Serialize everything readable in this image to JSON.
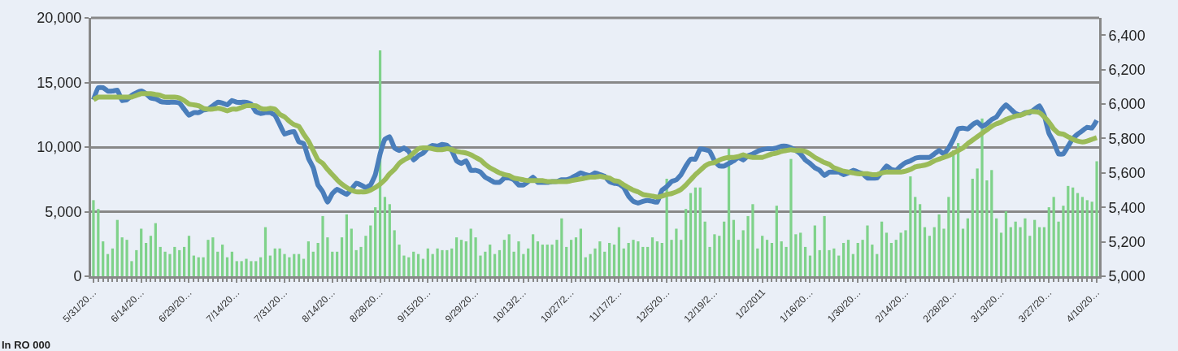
{
  "chart_data": {
    "type": "bar",
    "categories": [
      "5/31/20…",
      null,
      null,
      null,
      null,
      null,
      null,
      null,
      null,
      null,
      "6/14/20…",
      null,
      null,
      null,
      null,
      null,
      null,
      null,
      null,
      null,
      "6/29/20…",
      null,
      null,
      null,
      null,
      null,
      null,
      null,
      null,
      null,
      "7/14/20…",
      null,
      null,
      null,
      null,
      null,
      null,
      null,
      null,
      null,
      "7/31/20…",
      null,
      null,
      null,
      null,
      null,
      null,
      null,
      null,
      null,
      "8/14/20…",
      null,
      null,
      null,
      null,
      null,
      null,
      null,
      null,
      null,
      "8/28/20…",
      null,
      null,
      null,
      null,
      null,
      null,
      null,
      null,
      null,
      "9/15/20…",
      null,
      null,
      null,
      null,
      null,
      null,
      null,
      null,
      null,
      "9/29/20…",
      null,
      null,
      null,
      null,
      null,
      null,
      null,
      null,
      null,
      "10/13/2…",
      null,
      null,
      null,
      null,
      null,
      null,
      null,
      null,
      null,
      "10/27/2…",
      null,
      null,
      null,
      null,
      null,
      null,
      null,
      null,
      null,
      "11/17/2…",
      null,
      null,
      null,
      null,
      null,
      null,
      null,
      null,
      null,
      "12/5/20…",
      null,
      null,
      null,
      null,
      null,
      null,
      null,
      null,
      null,
      "12/19/2…",
      null,
      null,
      null,
      null,
      null,
      null,
      null,
      null,
      null,
      "1/2/2011",
      null,
      null,
      null,
      null,
      null,
      null,
      null,
      null,
      null,
      "1/16/20…",
      null,
      null,
      null,
      null,
      null,
      null,
      null,
      null,
      null,
      "1/30/20…",
      null,
      null,
      null,
      null,
      null,
      null,
      null,
      null,
      null,
      "2/14/20…",
      null,
      null,
      null,
      null,
      null,
      null,
      null,
      null,
      null,
      "2/28/20…",
      null,
      null,
      null,
      null,
      null,
      null,
      null,
      null,
      null,
      "3/13/20…",
      null,
      null,
      null,
      null,
      null,
      null,
      null,
      null,
      null,
      "3/27/20…",
      null,
      null,
      null,
      null,
      null,
      null,
      null,
      null,
      null,
      "4/10/20…"
    ],
    "series": [
      {
        "color": "#7fd28a",
        "values": [
          5890,
          5210,
          2700,
          1720,
          2150,
          4360,
          3010,
          2820,
          1170,
          2020,
          3680,
          2580,
          3130,
          4110,
          2270,
          1900,
          1720,
          2270,
          2020,
          2270,
          3130,
          1600,
          1470,
          1470,
          2820,
          3010,
          1900,
          2450,
          1470,
          1900,
          1170,
          1170,
          1350,
          1170,
          1170,
          1470,
          3800,
          1600,
          2150,
          2150,
          1720,
          1470,
          1720,
          1720,
          1350,
          2700,
          1900,
          2580,
          4660,
          3010,
          1900,
          1900,
          3010,
          4790,
          3680,
          2020,
          2270,
          3130,
          3930,
          5340,
          17490,
          6140,
          5580,
          3560,
          2450,
          1600,
          1470,
          1900,
          1720,
          1350,
          2150,
          1720,
          2150,
          2020,
          2020,
          2150,
          3010,
          2820,
          2700,
          3680,
          3010,
          1600,
          1900,
          2450,
          1720,
          2020,
          2820,
          3250,
          1900,
          2700,
          1720,
          2150,
          3250,
          2700,
          2450,
          2450,
          2450,
          2820,
          4480,
          2270,
          2820,
          3010,
          3680,
          1470,
          1720,
          2150,
          2700,
          1900,
          2580,
          2450,
          3800,
          2150,
          2580,
          2820,
          2700,
          2270,
          2270,
          3010,
          2700,
          2580,
          7550,
          2820,
          3680,
          2820,
          5210,
          6440,
          6870,
          6870,
          4230,
          2270,
          3250,
          3130,
          4230,
          9880,
          4360,
          2820,
          3560,
          4660,
          5580,
          2150,
          3130,
          2820,
          2580,
          5460,
          2700,
          2270,
          9080,
          3250,
          3370,
          2270,
          1600,
          3930,
          2020,
          4660,
          2020,
          2150,
          1600,
          2580,
          2820,
          1720,
          2580,
          2820,
          3930,
          2450,
          1720,
          4230,
          3370,
          2580,
          2820,
          3370,
          3560,
          7730,
          6140,
          5580,
          3800,
          3130,
          3800,
          4790,
          3680,
          6140,
          9750,
          10310,
          3680,
          4480,
          7550,
          8340,
          12210,
          7420,
          8220,
          4480,
          3370,
          5030,
          3800,
          4230,
          3800,
          4480,
          3130,
          4360,
          3800,
          3800,
          5340,
          6140,
          4230,
          5460,
          6990,
          6870,
          6440,
          6140,
          5890,
          5770,
          8900
        ]
      },
      {
        "type": "line",
        "axis": "y2",
        "color": "#4a7ebb",
        "values": [
          6025,
          6095,
          6095,
          6075,
          6075,
          6080,
          6020,
          6025,
          6050,
          6065,
          6075,
          6060,
          6035,
          6030,
          6015,
          6010,
          6010,
          6010,
          6005,
          5970,
          5935,
          5950,
          5950,
          5965,
          5970,
          5990,
          6010,
          6005,
          5995,
          6020,
          6010,
          6010,
          6010,
          6000,
          5955,
          5945,
          5950,
          5950,
          5935,
          5880,
          5825,
          5835,
          5840,
          5780,
          5770,
          5685,
          5630,
          5530,
          5490,
          5430,
          5480,
          5505,
          5490,
          5475,
          5505,
          5540,
          5530,
          5515,
          5530,
          5590,
          5710,
          5795,
          5810,
          5745,
          5730,
          5745,
          5725,
          5675,
          5700,
          5715,
          5745,
          5760,
          5755,
          5765,
          5760,
          5730,
          5670,
          5655,
          5670,
          5615,
          5615,
          5605,
          5575,
          5560,
          5545,
          5545,
          5570,
          5570,
          5560,
          5530,
          5530,
          5550,
          5575,
          5545,
          5545,
          5545,
          5550,
          5550,
          5560,
          5560,
          5570,
          5585,
          5600,
          5590,
          5585,
          5600,
          5590,
          5580,
          5550,
          5540,
          5535,
          5515,
          5465,
          5435,
          5425,
          5435,
          5440,
          5435,
          5430,
          5500,
          5520,
          5550,
          5560,
          5590,
          5640,
          5680,
          5680,
          5740,
          5735,
          5725,
          5670,
          5640,
          5640,
          5655,
          5670,
          5690,
          5675,
          5700,
          5710,
          5725,
          5735,
          5740,
          5740,
          5745,
          5755,
          5755,
          5745,
          5730,
          5710,
          5675,
          5655,
          5630,
          5615,
          5585,
          5605,
          5605,
          5605,
          5590,
          5600,
          5615,
          5605,
          5595,
          5570,
          5570,
          5570,
          5605,
          5640,
          5620,
          5615,
          5640,
          5660,
          5670,
          5685,
          5690,
          5690,
          5690,
          5710,
          5730,
          5710,
          5745,
          5795,
          5855,
          5860,
          5855,
          5880,
          5895,
          5870,
          5885,
          5910,
          5925,
          5965,
          5995,
          5970,
          5945,
          5935,
          5950,
          5950,
          5970,
          5990,
          5935,
          5830,
          5780,
          5710,
          5710,
          5755,
          5800,
          5825,
          5845,
          5865,
          5860,
          5905
        ]
      },
      {
        "type": "line",
        "axis": "y2",
        "color": "#9bbb59",
        "values": [
          6025,
          6040,
          6040,
          6040,
          6040,
          6040,
          6040,
          6040,
          6040,
          6050,
          6060,
          6060,
          6060,
          6055,
          6050,
          6040,
          6040,
          6040,
          6035,
          6020,
          6000,
          5995,
          5990,
          5975,
          5970,
          5970,
          5975,
          5970,
          5960,
          5970,
          5970,
          5980,
          5990,
          5990,
          5990,
          5975,
          5970,
          5975,
          5970,
          5940,
          5925,
          5900,
          5880,
          5870,
          5825,
          5785,
          5730,
          5675,
          5655,
          5620,
          5590,
          5560,
          5535,
          5515,
          5500,
          5490,
          5490,
          5490,
          5500,
          5515,
          5535,
          5560,
          5595,
          5620,
          5655,
          5675,
          5690,
          5715,
          5740,
          5745,
          5745,
          5740,
          5735,
          5735,
          5740,
          5735,
          5725,
          5720,
          5715,
          5705,
          5690,
          5675,
          5650,
          5630,
          5615,
          5600,
          5590,
          5585,
          5570,
          5565,
          5560,
          5555,
          5555,
          5555,
          5555,
          5550,
          5550,
          5550,
          5550,
          5550,
          5555,
          5560,
          5565,
          5570,
          5575,
          5575,
          5580,
          5575,
          5570,
          5555,
          5550,
          5530,
          5515,
          5500,
          5490,
          5475,
          5470,
          5465,
          5460,
          5465,
          5475,
          5480,
          5490,
          5505,
          5530,
          5560,
          5590,
          5615,
          5640,
          5655,
          5660,
          5675,
          5685,
          5690,
          5690,
          5695,
          5705,
          5695,
          5690,
          5690,
          5690,
          5700,
          5710,
          5715,
          5725,
          5730,
          5735,
          5730,
          5730,
          5725,
          5710,
          5690,
          5675,
          5660,
          5650,
          5630,
          5620,
          5610,
          5605,
          5600,
          5595,
          5595,
          5595,
          5590,
          5590,
          5600,
          5605,
          5605,
          5605,
          5605,
          5610,
          5620,
          5635,
          5640,
          5645,
          5655,
          5670,
          5680,
          5690,
          5700,
          5715,
          5730,
          5745,
          5770,
          5790,
          5810,
          5830,
          5850,
          5870,
          5885,
          5895,
          5910,
          5920,
          5930,
          5935,
          5945,
          5955,
          5955,
          5950,
          5925,
          5895,
          5855,
          5830,
          5825,
          5810,
          5795,
          5785,
          5780,
          5785,
          5795,
          5805
        ]
      }
    ],
    "ylim": [
      0,
      20000
    ],
    "yticks": [
      {
        "value": 0,
        "label": "0"
      },
      {
        "value": 5000,
        "label": "5,000"
      },
      {
        "value": 10000,
        "label": "10,000"
      },
      {
        "value": 15000,
        "label": "15,000"
      },
      {
        "value": 20000,
        "label": "20,000"
      }
    ],
    "y2lim": [
      5000,
      6500
    ],
    "y2ticks": [
      {
        "value": 5000,
        "label": "5,000"
      },
      {
        "value": 5200,
        "label": "5,200"
      },
      {
        "value": 5400,
        "label": "5,400"
      },
      {
        "value": 5600,
        "label": "5,600"
      },
      {
        "value": 5800,
        "label": "5,800"
      },
      {
        "value": 6000,
        "label": "6,000"
      },
      {
        "value": 6200,
        "label": "6,200"
      },
      {
        "value": 6400,
        "label": "6,400"
      }
    ],
    "grid": "y",
    "annotations": [
      "In RO 000"
    ]
  }
}
